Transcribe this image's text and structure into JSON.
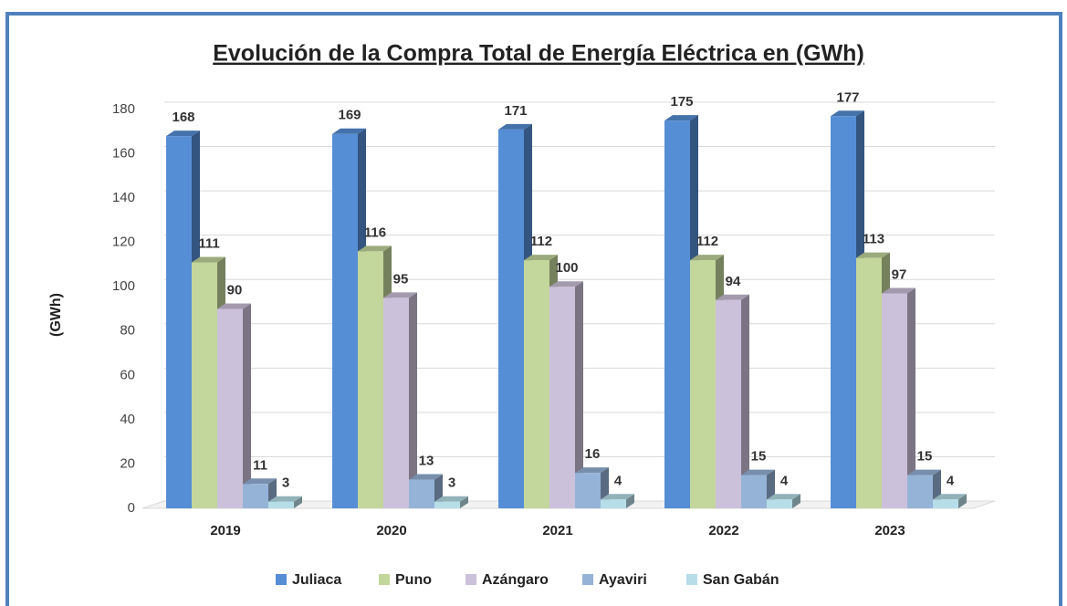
{
  "chart_data": {
    "type": "bar",
    "title": "Evolución de la Compra Total de Energía Eléctrica en (GWh)",
    "y_label": "(GWh)",
    "categories": [
      "2019",
      "2020",
      "2021",
      "2022",
      "2023"
    ],
    "series": [
      {
        "name": "Juliaca",
        "color": "#558ed5",
        "values": [
          168,
          169,
          171,
          175,
          177
        ]
      },
      {
        "name": "Puno",
        "color": "#c3d69b",
        "values": [
          111,
          116,
          112,
          112,
          113
        ]
      },
      {
        "name": "Azángaro",
        "color": "#ccc1da",
        "values": [
          90,
          95,
          100,
          94,
          97
        ]
      },
      {
        "name": "Ayaviri",
        "color": "#95b3d7",
        "values": [
          11,
          13,
          16,
          15,
          15
        ]
      },
      {
        "name": "San Gabán",
        "color": "#b7dee8",
        "values": [
          3,
          3,
          4,
          4,
          4
        ]
      }
    ],
    "ylim": [
      0,
      180
    ],
    "yticks": [
      0,
      20,
      40,
      60,
      80,
      100,
      120,
      140,
      160,
      180
    ],
    "grid": true,
    "legend": "bottom"
  }
}
